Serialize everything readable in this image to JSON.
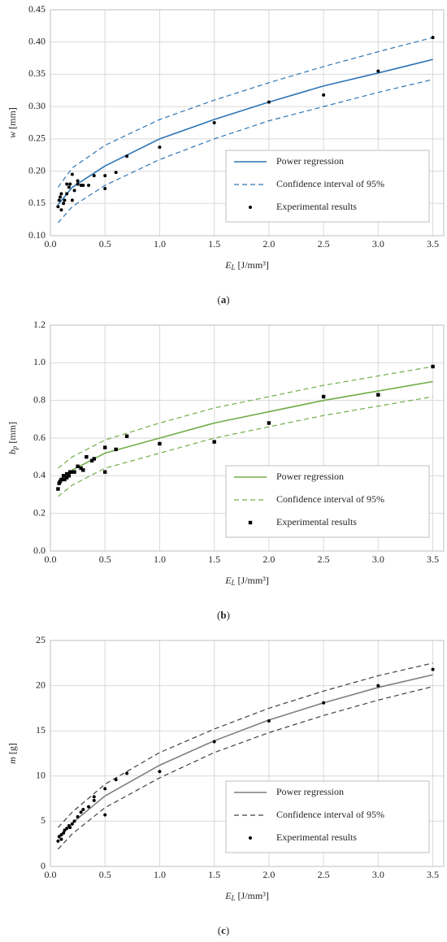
{
  "chart_data": [
    {
      "type": "scatter",
      "caption": "a",
      "legend": "lower right",
      "grid": true,
      "x_label": {
        "symbol": "E",
        "subscript": "L",
        "unit": "[J/mm³]"
      },
      "y_label": {
        "symbol": "w",
        "unit": "[mm]"
      },
      "xlim": [
        0,
        3.6
      ],
      "xticks": [
        {
          "value": 0,
          "label": "0.0"
        },
        0.5,
        {
          "value": 1,
          "label": "1.0"
        },
        1.5,
        {
          "value": 2,
          "label": "2.0"
        },
        2.5,
        {
          "value": 3,
          "label": "3.0"
        },
        3.5
      ],
      "ylim": [
        0.1,
        0.45
      ],
      "yticks": [
        {
          "value": 0.1,
          "label": "0.10"
        },
        0.15,
        {
          "value": 0.2,
          "label": "0.20"
        },
        0.25,
        {
          "value": 0.3,
          "label": "0.30"
        },
        0.35,
        {
          "value": 0.4,
          "label": "0.40"
        },
        0.45
      ],
      "series": [
        {
          "name": "Power regression",
          "color": "#2e75b6",
          "dashed": false,
          "marker": null,
          "x": [
            0.07,
            0.2,
            0.5,
            1,
            1.5,
            2,
            2.5,
            3,
            3.5
          ],
          "values": [
            0.148,
            0.175,
            0.208,
            0.25,
            0.28,
            0.307,
            0.332,
            0.352,
            0.373
          ]
        },
        {
          "name": "Confidence interval of 95%",
          "color": "#2e75b6",
          "dashed": true,
          "marker": null,
          "x": [
            0.07,
            0.2,
            0.5,
            1,
            1.5,
            2,
            2.5,
            3,
            3.5
          ],
          "values": [
            0.175,
            0.205,
            0.24,
            0.28,
            0.31,
            0.337,
            0.362,
            0.385,
            0.407
          ]
        },
        {
          "color": "#2e75b6",
          "dashed": true,
          "marker": null,
          "x": [
            0.07,
            0.2,
            0.5,
            1,
            1.5,
            2,
            2.5,
            3,
            3.5
          ],
          "values": [
            0.12,
            0.145,
            0.178,
            0.218,
            0.25,
            0.278,
            0.3,
            0.322,
            0.342
          ]
        },
        {
          "name": "Experimental results",
          "color": "#000000",
          "marker": "circle",
          "x": [
            0.07,
            0.08,
            0.09,
            0.1,
            0.1,
            0.12,
            0.13,
            0.15,
            0.15,
            0.17,
            0.18,
            0.2,
            0.2,
            0.22,
            0.25,
            0.25,
            0.28,
            0.3,
            0.35,
            0.4,
            0.5,
            0.5,
            0.6,
            0.7,
            1,
            1.5,
            2,
            2.5,
            3,
            3.5
          ],
          "values": [
            0.145,
            0.155,
            0.16,
            0.165,
            0.14,
            0.15,
            0.155,
            0.165,
            0.18,
            0.175,
            0.18,
            0.195,
            0.155,
            0.17,
            0.18,
            0.185,
            0.178,
            0.178,
            0.178,
            0.193,
            0.193,
            0.173,
            0.198,
            0.223,
            0.237,
            0.275,
            0.307,
            0.318,
            0.355,
            0.407
          ]
        }
      ]
    },
    {
      "type": "scatter",
      "caption": "b",
      "legend": "lower right",
      "grid": true,
      "x_label": {
        "symbol": "E",
        "subscript": "L",
        "unit": "[J/mm³]"
      },
      "y_label": {
        "symbol": "b",
        "subscript": "p",
        "unit": "[mm]"
      },
      "xlim": [
        0,
        3.6
      ],
      "xticks": [
        {
          "value": 0,
          "label": "0.0"
        },
        0.5,
        {
          "value": 1,
          "label": "1.0"
        },
        1.5,
        {
          "value": 2,
          "label": "2.0"
        },
        2.5,
        {
          "value": 3,
          "label": "3.0"
        },
        3.5
      ],
      "ylim": [
        0,
        1.2
      ],
      "yticks": [
        {
          "value": 0,
          "label": "0.0"
        },
        0.2,
        0.4,
        0.6,
        0.8,
        {
          "value": 1,
          "label": "1.0"
        },
        1.2
      ],
      "series": [
        {
          "name": "Power regression",
          "color": "#70ad47",
          "dashed": false,
          "marker": null,
          "x": [
            0.07,
            0.2,
            0.5,
            1,
            1.5,
            2,
            2.5,
            3,
            3.5
          ],
          "values": [
            0.37,
            0.43,
            0.52,
            0.6,
            0.68,
            0.74,
            0.8,
            0.85,
            0.9
          ]
        },
        {
          "name": "Confidence interval of 95%",
          "color": "#70ad47",
          "dashed": true,
          "marker": null,
          "x": [
            0.07,
            0.2,
            0.5,
            1,
            1.5,
            2,
            2.5,
            3,
            3.5
          ],
          "values": [
            0.44,
            0.5,
            0.59,
            0.68,
            0.76,
            0.82,
            0.88,
            0.93,
            0.98
          ]
        },
        {
          "color": "#70ad47",
          "dashed": true,
          "marker": null,
          "x": [
            0.07,
            0.2,
            0.5,
            1,
            1.5,
            2,
            2.5,
            3,
            3.5
          ],
          "values": [
            0.29,
            0.35,
            0.44,
            0.52,
            0.6,
            0.66,
            0.72,
            0.77,
            0.82
          ]
        },
        {
          "name": "Experimental results",
          "color": "#000000",
          "marker": "square",
          "x": [
            0.07,
            0.08,
            0.09,
            0.1,
            0.12,
            0.13,
            0.15,
            0.15,
            0.17,
            0.18,
            0.2,
            0.22,
            0.25,
            0.28,
            0.3,
            0.33,
            0.38,
            0.4,
            0.5,
            0.5,
            0.6,
            0.7,
            1,
            1.5,
            2,
            2.5,
            3,
            3.5
          ],
          "values": [
            0.33,
            0.36,
            0.37,
            0.38,
            0.4,
            0.38,
            0.41,
            0.39,
            0.4,
            0.42,
            0.42,
            0.42,
            0.45,
            0.44,
            0.43,
            0.5,
            0.48,
            0.49,
            0.42,
            0.55,
            0.54,
            0.61,
            0.57,
            0.58,
            0.68,
            0.82,
            0.83,
            0.98
          ]
        }
      ]
    },
    {
      "type": "scatter",
      "caption": "c",
      "legend": "lower right",
      "grid": true,
      "x_label": {
        "symbol": "E",
        "subscript": "L",
        "unit": "[J/mm³]"
      },
      "y_label": {
        "symbol": "m",
        "unit": "[g]"
      },
      "xlim": [
        0,
        3.6
      ],
      "xticks": [
        {
          "value": 0,
          "label": "0.0"
        },
        0.5,
        {
          "value": 1,
          "label": "1.0"
        },
        1.5,
        {
          "value": 2,
          "label": "2.0"
        },
        2.5,
        {
          "value": 3,
          "label": "3.0"
        },
        3.5
      ],
      "ylim": [
        0,
        25
      ],
      "yticks": [
        0,
        5,
        10,
        15,
        20,
        25
      ],
      "series": [
        {
          "name": "Power regression",
          "color": "#7f7f7f",
          "dashed": false,
          "marker": null,
          "x": [
            0.07,
            0.2,
            0.5,
            1,
            1.5,
            2,
            2.5,
            3,
            3.5
          ],
          "values": [
            3.1,
            4.8,
            7.8,
            11.2,
            13.9,
            16.2,
            18.1,
            19.8,
            21.2
          ]
        },
        {
          "name": "Confidence interval of 95%",
          "color": "#404040",
          "dashed": true,
          "marker": null,
          "x": [
            0.07,
            0.2,
            0.5,
            1,
            1.5,
            2,
            2.5,
            3,
            3.5
          ],
          "values": [
            4.3,
            6,
            9.1,
            12.6,
            15.2,
            17.5,
            19.4,
            21.1,
            22.5
          ]
        },
        {
          "color": "#404040",
          "dashed": true,
          "marker": null,
          "x": [
            0.07,
            0.2,
            0.5,
            1,
            1.5,
            2,
            2.5,
            3,
            3.5
          ],
          "values": [
            1.9,
            3.6,
            6.5,
            9.8,
            12.6,
            14.8,
            16.7,
            18.4,
            19.9
          ]
        },
        {
          "name": "Experimental results",
          "color": "#000000",
          "marker": "circle",
          "x": [
            0.07,
            0.08,
            0.1,
            0.1,
            0.12,
            0.13,
            0.15,
            0.17,
            0.18,
            0.2,
            0.22,
            0.25,
            0.28,
            0.3,
            0.35,
            0.4,
            0.4,
            0.5,
            0.5,
            0.6,
            0.7,
            1,
            1.5,
            2,
            2.5,
            3,
            3.5
          ],
          "values": [
            2.8,
            3.3,
            3.5,
            3,
            3.7,
            4,
            4.2,
            4.5,
            4.3,
            4.7,
            5,
            5.5,
            6,
            6.3,
            6.6,
            7.3,
            7.7,
            8.6,
            5.7,
            9.6,
            10.3,
            10.5,
            13.8,
            16.1,
            18.1,
            20,
            21.8
          ]
        }
      ]
    }
  ]
}
